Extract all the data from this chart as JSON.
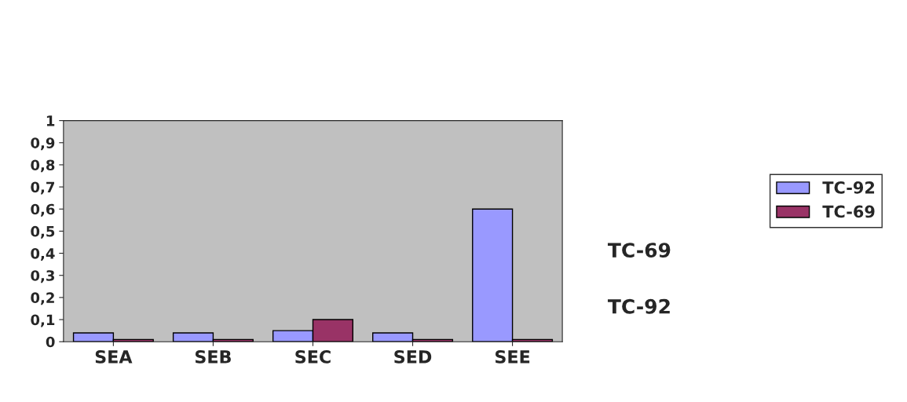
{
  "chart_data": {
    "type": "bar",
    "categories": [
      "SEA",
      "SEB",
      "SEC",
      "SED",
      "SEE"
    ],
    "series": [
      {
        "name": "TC-92",
        "color": "#9999ff",
        "values": [
          0.04,
          0.04,
          0.05,
          0.04,
          0.6
        ]
      },
      {
        "name": "TC-69",
        "color": "#993366",
        "values": [
          0.01,
          0.01,
          0.1,
          0.01,
          0.01
        ]
      }
    ],
    "ylim": [
      0,
      1
    ],
    "yticks": [
      0,
      {
        "value": 0.1,
        "label": "0,1"
      },
      {
        "value": 0.2,
        "label": "0,2"
      },
      {
        "value": 0.3,
        "label": "0,3"
      },
      {
        "value": 0.4,
        "label": "0,4"
      },
      {
        "value": 0.5,
        "label": "0,5"
      },
      {
        "value": 0.6,
        "label": "0,6"
      },
      {
        "value": 0.7,
        "label": "0,7"
      },
      {
        "value": 0.8,
        "label": "0,8"
      },
      {
        "value": 0.9,
        "label": "0,9"
      },
      1
    ],
    "annotations": [
      "TC-69",
      "TC-92"
    ],
    "legend": "right",
    "grid": false
  }
}
